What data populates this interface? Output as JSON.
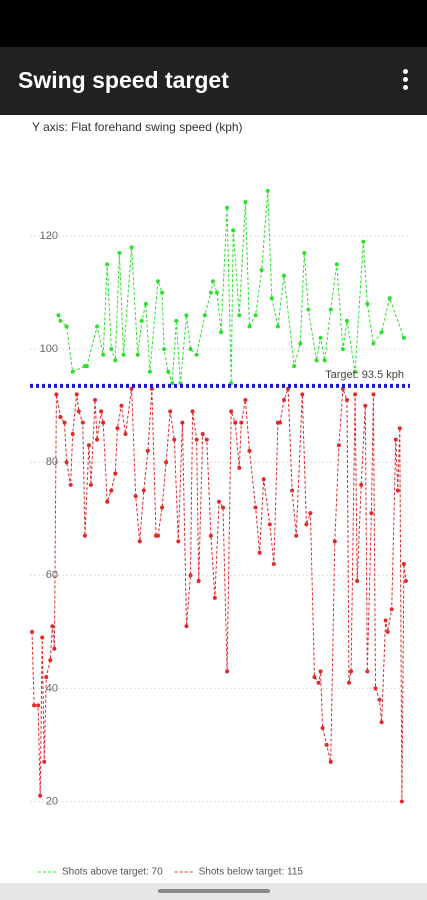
{
  "app_bar": {
    "title": "Swing speed target"
  },
  "chart_data": {
    "type": "line",
    "title": "Y axis: Flat forehand swing speed (kph)",
    "xlim": [
      -1,
      186
    ],
    "ylim": [
      10,
      140
    ],
    "yticks": [
      20,
      40,
      60,
      80,
      100,
      120
    ],
    "grid": true,
    "target": {
      "value": 93.5,
      "label": "Target: 93.5 kph",
      "color": "#1a1acc"
    },
    "series": [
      {
        "name": "Shots above target: 70",
        "color": "#2de02d",
        "x": [
          13,
          14,
          17,
          20,
          26,
          27,
          32,
          35,
          37,
          39,
          41,
          43,
          45,
          49,
          52,
          54,
          56,
          58,
          62,
          64,
          65,
          67,
          69,
          71,
          73,
          76,
          78,
          81,
          85,
          88,
          89,
          91,
          93,
          96,
          98,
          99,
          102,
          105,
          107,
          110,
          113,
          116,
          118,
          121,
          124,
          129,
          132,
          134,
          136,
          140,
          142,
          144,
          147,
          150,
          153,
          155,
          159,
          163,
          165,
          168,
          172,
          176,
          183
        ],
        "values": [
          106,
          105,
          104,
          96,
          97,
          97,
          104,
          99,
          115,
          100,
          98,
          117,
          99,
          118,
          99,
          105,
          108,
          96,
          112,
          110,
          100,
          96,
          94,
          105,
          94,
          106,
          100,
          99,
          106,
          110,
          112,
          110,
          103,
          125,
          94,
          121,
          106,
          126,
          104,
          106,
          114,
          128,
          109,
          104,
          113,
          97,
          101,
          117,
          107,
          98,
          102,
          98,
          107,
          115,
          100,
          105,
          96,
          119,
          108,
          101,
          103,
          109,
          102
        ]
      },
      {
        "name": "Shots below target: 115",
        "color": "#e02a2a",
        "x": [
          0,
          1,
          3,
          4,
          5,
          6,
          7,
          9,
          10,
          11,
          12,
          14,
          16,
          17,
          19,
          20,
          22,
          23,
          25,
          26,
          28,
          29,
          31,
          32,
          34,
          35,
          37,
          39,
          41,
          42,
          44,
          46,
          49,
          51,
          53,
          55,
          57,
          59,
          61,
          62,
          64,
          66,
          68,
          70,
          72,
          74,
          76,
          78,
          79,
          81,
          82,
          84,
          86,
          88,
          90,
          92,
          94,
          96,
          98,
          100,
          102,
          103,
          105,
          107,
          110,
          112,
          114,
          117,
          119,
          121,
          122,
          124,
          126,
          128,
          130,
          133,
          135,
          137,
          139,
          141,
          142,
          143,
          145,
          147,
          149,
          151,
          153,
          155,
          156,
          157,
          159,
          160,
          162,
          164,
          165,
          167,
          168,
          169,
          171,
          172,
          174,
          175,
          177,
          179,
          180,
          181,
          182,
          183,
          184
        ],
        "values": [
          50,
          37,
          37,
          21,
          49,
          27,
          42,
          45,
          51,
          47,
          92,
          88,
          87,
          80,
          76,
          85,
          92,
          89,
          87,
          67,
          83,
          76,
          91,
          84,
          89,
          87,
          73,
          75,
          78,
          86,
          90,
          85,
          93,
          74,
          66,
          75,
          82,
          93,
          67,
          67,
          72,
          80,
          89,
          84,
          66,
          87,
          51,
          60,
          89,
          84,
          59,
          85,
          84,
          67,
          56,
          73,
          72,
          43,
          89,
          87,
          79,
          87,
          91,
          82,
          72,
          64,
          77,
          69,
          62,
          87,
          87,
          91,
          93,
          75,
          67,
          92,
          69,
          71,
          42,
          41,
          43,
          33,
          30,
          27,
          66,
          83,
          93,
          91,
          41,
          43,
          92,
          59,
          76,
          90,
          43,
          71,
          92,
          40,
          38,
          34,
          52,
          50,
          54,
          84,
          75,
          86,
          20,
          62,
          59
        ]
      }
    ]
  }
}
